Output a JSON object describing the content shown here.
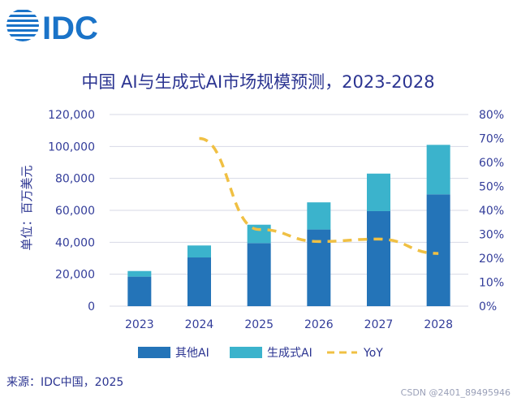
{
  "logo": {
    "text": "IDC",
    "color": "#1a73c8"
  },
  "chart_data": {
    "type": "bar",
    "title": "中国 AI与生成式AI市场规模预测，2023-2028",
    "ylabel": "单位：百万美元",
    "xlabel": "",
    "categories": [
      "2023",
      "2024",
      "2025",
      "2026",
      "2027",
      "2028"
    ],
    "stacked": true,
    "ylim": [
      0,
      120000
    ],
    "y_ticks": [
      "0",
      "20,000",
      "40,000",
      "60,000",
      "80,000",
      "100,000",
      "120,000"
    ],
    "y2lim": [
      0,
      80
    ],
    "y2_ticks": [
      "0%",
      "10%",
      "20%",
      "30%",
      "40%",
      "50%",
      "60%",
      "70%",
      "80%"
    ],
    "series": [
      {
        "name": "其他AI",
        "type": "bar",
        "color": "#2474b8",
        "values": [
          18500,
          30500,
          39500,
          48000,
          59500,
          70000
        ]
      },
      {
        "name": "生成式AI",
        "type": "bar",
        "color": "#3bb3cc",
        "values": [
          3500,
          7500,
          11500,
          17000,
          23500,
          31000
        ]
      },
      {
        "name": "YoY",
        "type": "line",
        "axis": "right",
        "color": "#f0c043",
        "dashed": true,
        "values": [
          null,
          70,
          32,
          27,
          28,
          22
        ]
      }
    ],
    "legend_position": "bottom"
  },
  "source": "来源：IDC中国，2025",
  "watermark": "CSDN @2401_89495946"
}
